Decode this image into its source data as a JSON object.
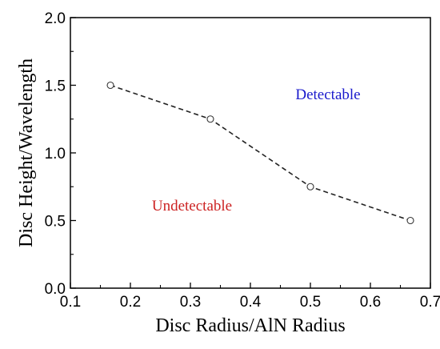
{
  "chart_data": {
    "type": "line",
    "series": [
      {
        "x": [
          0.1667,
          0.3333,
          0.5,
          0.6667
        ],
        "y": [
          1.5,
          1.25,
          0.75,
          0.5
        ]
      }
    ],
    "xlabel": "Disc Radius/AlN Radius",
    "ylabel": "Disc Height/Wavelength",
    "xlim": [
      0.1,
      0.7
    ],
    "ylim": [
      0.0,
      2.0
    ],
    "xticks": [
      "0.1",
      "0.2",
      "0.3",
      "0.4",
      "0.5",
      "0.6",
      "0.7"
    ],
    "yticks": [
      "0.0",
      "0.5",
      "1.0",
      "1.5",
      "2.0"
    ],
    "grid": false,
    "line_style": "dashed",
    "marker": "open-circle",
    "annotations": [
      {
        "text": "Detectable",
        "color": "#1a1acc"
      },
      {
        "text": "Undetectable",
        "color": "#cc2222"
      }
    ]
  }
}
